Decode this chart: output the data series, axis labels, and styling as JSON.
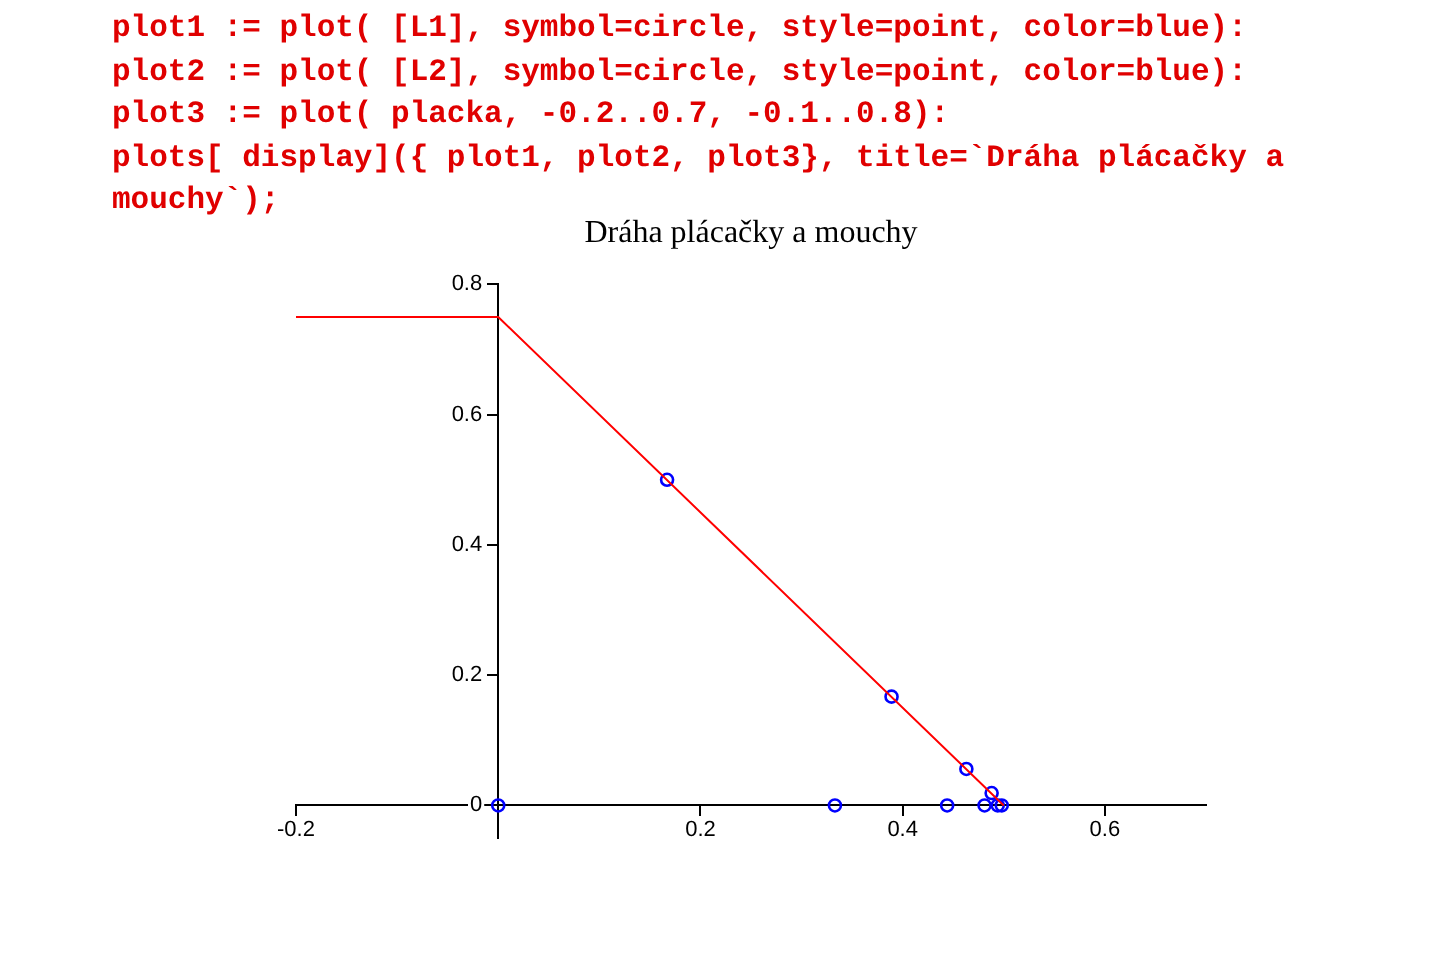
{
  "chart_data": {
    "type": "line",
    "title": "Dráha plácačky a mouchy",
    "annotations": [
      "plot1 := plot( [L1], symbol=circle, style=point, color=blue):",
      "plot2 := plot( [L2], symbol=circle, style=point, color=blue):",
      "plot3 := plot( placka, -0.2..0.7, -0.1..0.8):",
      "plots[ display]({ plot1, plot2, plot3}, title=`Dráha plácačky a mouchy`);"
    ],
    "series": [
      {
        "type": "line",
        "color": "#ff0000",
        "marker": "none",
        "x": [
          -0.2,
          0,
          0.5
        ],
        "values": [
          0.75,
          0.75,
          0
        ]
      },
      {
        "type": "scatter",
        "color": "#0000ff",
        "marker": "circle",
        "x": [
          0.167,
          0.389,
          0.463,
          0.488
        ],
        "values": [
          0.5,
          0.167,
          0.056,
          0.019
        ]
      },
      {
        "type": "scatter",
        "color": "#0000ff",
        "marker": "circle",
        "x": [
          0,
          0.333,
          0.444,
          0.481,
          0.494,
          0.498
        ],
        "values": [
          0,
          0,
          0,
          0,
          0,
          0
        ]
      }
    ],
    "xlim": [
      -0.2,
      0.7
    ],
    "ylim": [
      -0.05,
      0.8
    ],
    "xticks": [
      -0.2,
      {
        "value": 0,
        "label": null
      },
      0.2,
      0.4,
      0.6
    ],
    "yticks": [
      0,
      0.2,
      0.4,
      0.6,
      0.8
    ],
    "grid": false,
    "legend": false
  }
}
